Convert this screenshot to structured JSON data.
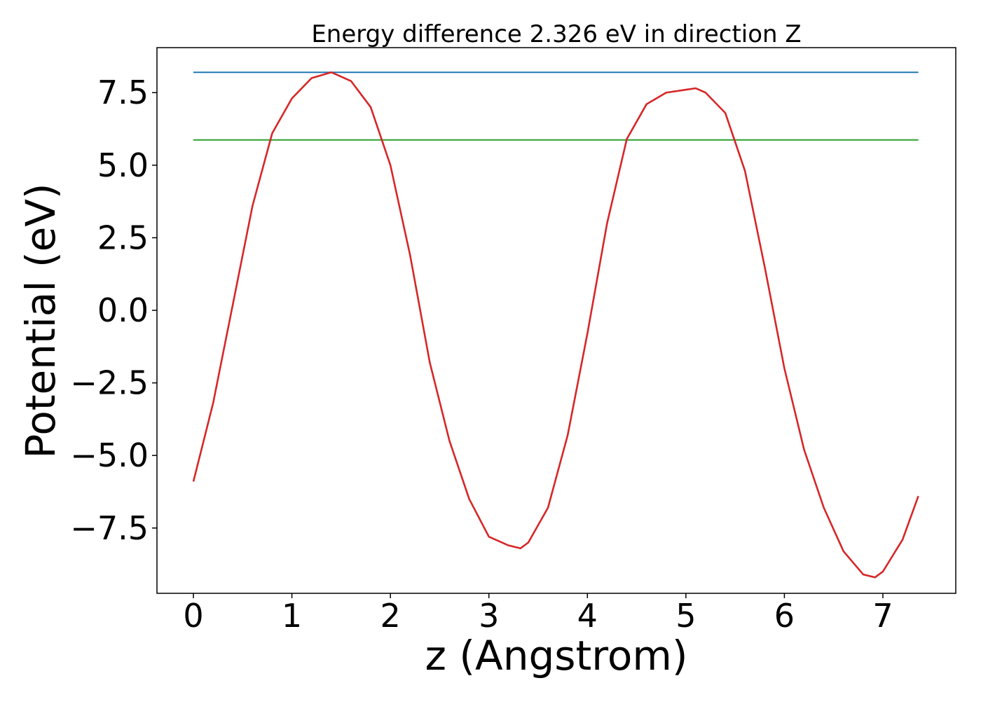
{
  "chart_data": {
    "type": "line",
    "title": "Energy difference 2.326 eV in direction Z",
    "xlabel": "z (Angstrom)",
    "ylabel": "Potential (eV)",
    "xlim": [
      -0.37,
      7.74
    ],
    "ylim": [
      -9.75,
      9.05
    ],
    "x_ticks": [
      0,
      1,
      2,
      3,
      4,
      5,
      6,
      7
    ],
    "x_tick_labels": [
      "0",
      "1",
      "2",
      "3",
      "4",
      "5",
      "6",
      "7"
    ],
    "y_ticks": [
      -7.5,
      -5.0,
      -2.5,
      0.0,
      2.5,
      5.0,
      7.5
    ],
    "y_tick_labels": [
      "−7.5",
      "−5.0",
      "−2.5",
      "0.0",
      "2.5",
      "5.0",
      "7.5"
    ],
    "grid": false,
    "legend": "none",
    "series": [
      {
        "color": "#1f77b4",
        "x": [
          0,
          7.36
        ],
        "y": [
          8.2,
          8.2
        ]
      },
      {
        "color": "#2ca02c",
        "x": [
          0,
          7.36
        ],
        "y": [
          5.87,
          5.87
        ]
      },
      {
        "color": "#d62728",
        "x": [
          0,
          0.2,
          0.4,
          0.6,
          0.8,
          1.0,
          1.2,
          1.4,
          1.6,
          1.8,
          2.0,
          2.2,
          2.4,
          2.6,
          2.8,
          3.0,
          3.2,
          3.32,
          3.4,
          3.6,
          3.8,
          4.0,
          4.2,
          4.4,
          4.6,
          4.8,
          5.0,
          5.1,
          5.2,
          5.4,
          5.6,
          5.8,
          6.0,
          6.2,
          6.4,
          6.6,
          6.8,
          6.92,
          7.0,
          7.2,
          7.36
        ],
        "y": [
          -5.9,
          -3.2,
          0.2,
          3.6,
          6.1,
          7.3,
          8.0,
          8.2,
          7.9,
          7.0,
          5.0,
          1.9,
          -1.8,
          -4.5,
          -6.5,
          -7.8,
          -8.1,
          -8.2,
          -8.0,
          -6.8,
          -4.3,
          -0.8,
          3.0,
          5.9,
          7.1,
          7.5,
          7.6,
          7.65,
          7.5,
          6.8,
          4.8,
          1.5,
          -2.0,
          -4.8,
          -6.8,
          -8.3,
          -9.1,
          -9.2,
          -9.0,
          -7.9,
          -6.4
        ]
      }
    ]
  }
}
